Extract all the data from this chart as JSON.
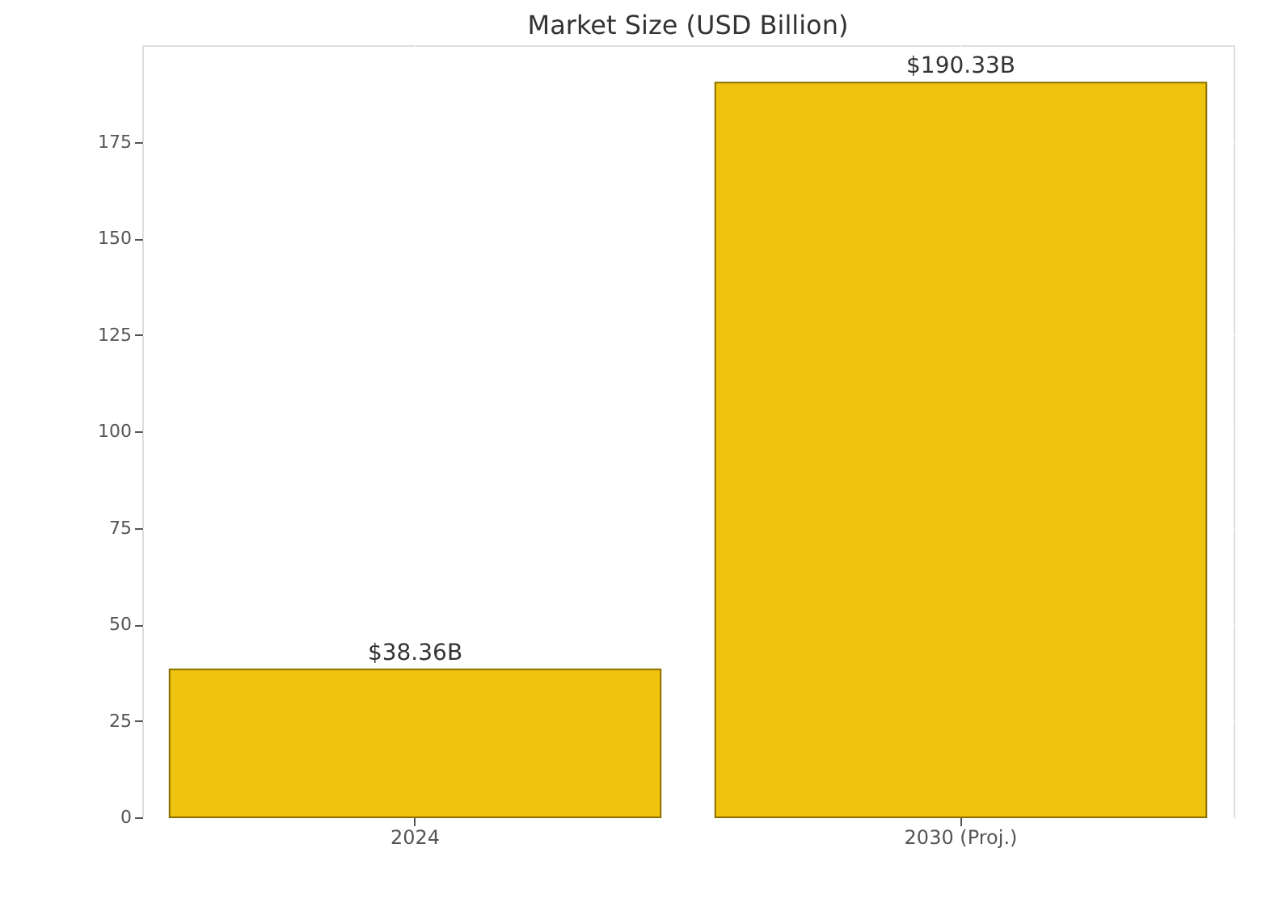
{
  "chart_data": {
    "type": "bar",
    "title": "Market Size (USD Billion)",
    "categories": [
      "2024",
      "2030 (Proj.)"
    ],
    "values": [
      38.36,
      190.33
    ],
    "value_labels": [
      "$38.36B",
      "$190.33B"
    ],
    "color": "#f0c30f",
    "ylim": [
      0,
      200
    ],
    "yticks": [
      0,
      25,
      50,
      75,
      100,
      125,
      150,
      175
    ],
    "grid": true
  }
}
